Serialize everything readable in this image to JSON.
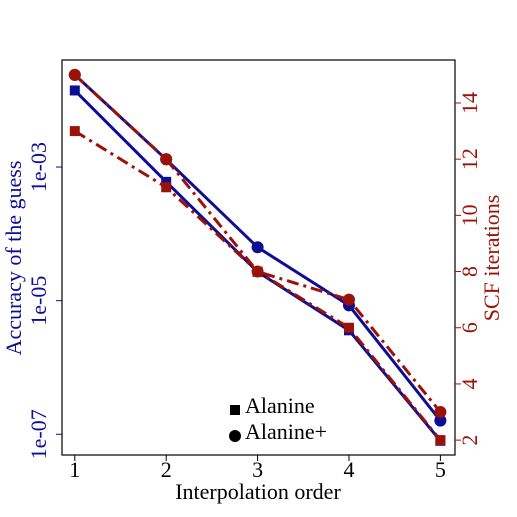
{
  "chart_data": {
    "type": "line",
    "xlabel": "Interpolation order",
    "ylabel": "Accuracy of the guess",
    "y2label": "SCF iterations",
    "x": [
      1,
      2,
      3,
      4,
      5
    ],
    "xlim": [
      0.86,
      5.16
    ],
    "xticks": [
      1,
      2,
      3,
      4,
      5
    ],
    "ylim": [
      4.9e-08,
      0.04
    ],
    "yscale": "log",
    "yticks": [
      {
        "value": 1e-07,
        "label": "1e-07"
      },
      {
        "value": 1e-05,
        "label": "1e-05"
      },
      {
        "value": 0.001,
        "label": "1e-03"
      }
    ],
    "y2lim": [
      1.47,
      15.53
    ],
    "y2ticks": [
      2,
      4,
      6,
      8,
      10,
      12,
      14
    ],
    "series": [
      {
        "color": "#0d0d96",
        "marker": "square",
        "linestyle": "solid",
        "values": [
          0.014,
          0.0006,
          2.7e-05,
          3.6e-06,
          8e-08
        ]
      },
      {
        "color": "#0d0d96",
        "marker": "circle",
        "linestyle": "solid",
        "values": [
          0.024,
          0.0013,
          6.3e-05,
          8.5e-06,
          1.6e-07
        ]
      },
      {
        "color": "#9b1208",
        "marker": "square",
        "linestyle": "dashdot",
        "axis": "y2",
        "values": [
          13,
          11,
          8,
          6,
          2
        ]
      },
      {
        "color": "#9b1208",
        "marker": "circle",
        "linestyle": "dashdot",
        "axis": "y2",
        "values": [
          15,
          12,
          8,
          7,
          3
        ]
      }
    ],
    "legend": [
      {
        "label": "Alanine",
        "marker": "square"
      },
      {
        "label": "Alanine+",
        "marker": "circle"
      }
    ],
    "legend_color": "#000000"
  }
}
